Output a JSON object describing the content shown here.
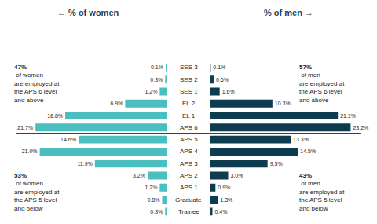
{
  "chart_data": {
    "type": "bar",
    "orientation": "horizontal",
    "categories": [
      "SES 3",
      "SES 2",
      "SES 1",
      "EL 2",
      "EL 1",
      "APS 6",
      "APS 5",
      "APS 4",
      "APS 3",
      "APS 2",
      "APS 1",
      "Graduate",
      "Trainee"
    ],
    "series": [
      {
        "name": "← % of women",
        "color": "#4bbfbf",
        "values": [
          0.1,
          0.3,
          1.2,
          6.9,
          16.8,
          21.7,
          14.6,
          21.0,
          11.9,
          3.2,
          1.2,
          0.8,
          0.3
        ],
        "value_labels": [
          "0.1%",
          "0.3%",
          "1.2%",
          "6.9%",
          "16.8%",
          "21.7%",
          "14.6%",
          "21.0%",
          "11.9%",
          "3.2%",
          "1.2%",
          "0.8%",
          "0.3%"
        ]
      },
      {
        "name": "% of men →",
        "color": "#0d3b4f",
        "values": [
          0.1,
          0.6,
          1.6,
          10.3,
          21.1,
          23.2,
          13.3,
          14.5,
          9.5,
          3.0,
          0.9,
          1.3,
          0.4
        ],
        "value_labels": [
          "0.1%",
          "0.6%",
          "1.6%",
          "10.3%",
          "21.1%",
          "23.2%",
          "13.3%",
          "14.5%",
          "9.5%",
          "3.0%",
          "0.9%",
          "1.3%",
          "0.4%"
        ]
      }
    ],
    "xlim": [
      0,
      26
    ],
    "data_labels": true,
    "tick_labels": false,
    "grid": false,
    "annotations": [
      "47%\n of women\nare employed at\nthe APS 6 level\nand above",
      "53%\n of women\nare employed at\nthe APS 5 level\nand below",
      "57%\n of men\nare employed at\nthe APS 6 level\nand above",
      "43%\n of men\nare employed at\nthe APS 5 level\nand below"
    ]
  }
}
